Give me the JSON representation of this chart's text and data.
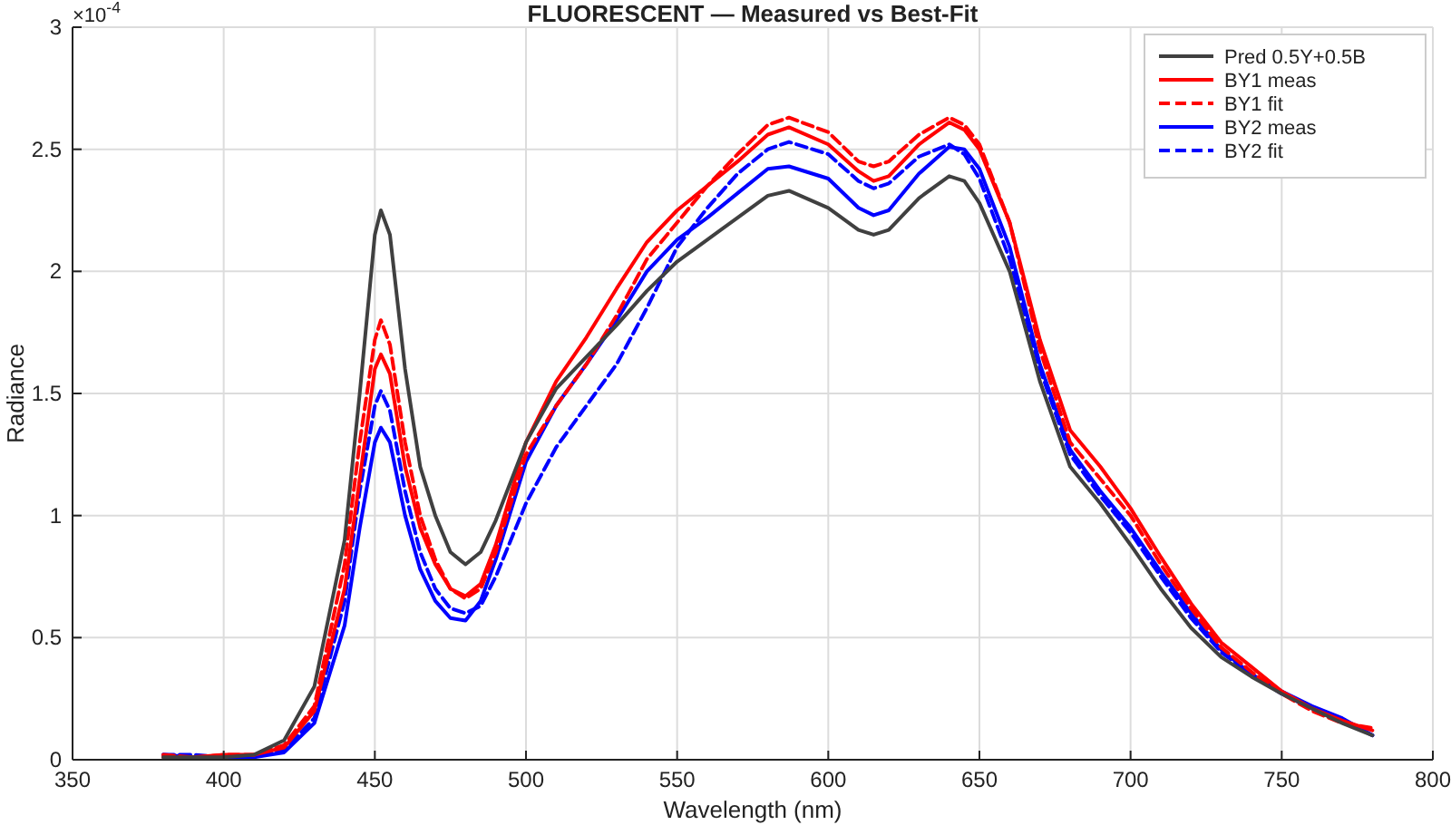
{
  "chart_data": {
    "type": "line",
    "title": "FLUORESCENT — Measured vs Best-Fit",
    "xlabel": "Wavelength (nm)",
    "ylabel": "Radiance",
    "annotations": [
      "×10$^{-4}$"
    ],
    "x": [
      380,
      390,
      400,
      410,
      420,
      430,
      440,
      445,
      450,
      452,
      455,
      460,
      465,
      470,
      475,
      480,
      485,
      490,
      500,
      510,
      520,
      530,
      540,
      550,
      560,
      570,
      580,
      587,
      600,
      610,
      615,
      620,
      630,
      640,
      645,
      650,
      660,
      670,
      680,
      690,
      700,
      710,
      720,
      730,
      740,
      750,
      760,
      770,
      780
    ],
    "series": [
      {
        "name": "Pred 0.5Y+0.5B",
        "color": "#404040",
        "line_style": "solid",
        "values": [
          0.01,
          0.01,
          0.01,
          0.02,
          0.08,
          0.3,
          0.9,
          1.5,
          2.15,
          2.25,
          2.15,
          1.6,
          1.2,
          1.0,
          0.85,
          0.8,
          0.85,
          0.98,
          1.3,
          1.52,
          1.65,
          1.78,
          1.92,
          2.04,
          2.13,
          2.22,
          2.31,
          2.33,
          2.26,
          2.17,
          2.15,
          2.17,
          2.3,
          2.39,
          2.37,
          2.28,
          2.0,
          1.55,
          1.2,
          1.05,
          0.88,
          0.7,
          0.54,
          0.42,
          0.34,
          0.27,
          0.21,
          0.15,
          0.1
        ]
      },
      {
        "name": "BY1 meas",
        "color": "#ff0000",
        "line_style": "solid",
        "values": [
          0.01,
          0.01,
          0.02,
          0.02,
          0.05,
          0.2,
          0.7,
          1.15,
          1.6,
          1.66,
          1.58,
          1.2,
          0.95,
          0.8,
          0.7,
          0.67,
          0.72,
          0.88,
          1.3,
          1.55,
          1.73,
          1.93,
          2.12,
          2.25,
          2.35,
          2.45,
          2.56,
          2.59,
          2.52,
          2.41,
          2.37,
          2.39,
          2.52,
          2.61,
          2.58,
          2.5,
          2.2,
          1.72,
          1.35,
          1.2,
          1.03,
          0.83,
          0.64,
          0.48,
          0.38,
          0.28,
          0.21,
          0.16,
          0.12
        ]
      },
      {
        "name": "BY1 fit",
        "color": "#ff0000",
        "line_style": "dashed",
        "values": [
          0.02,
          0.01,
          0.02,
          0.02,
          0.06,
          0.22,
          0.8,
          1.3,
          1.72,
          1.8,
          1.7,
          1.3,
          1.0,
          0.82,
          0.7,
          0.66,
          0.7,
          0.85,
          1.25,
          1.45,
          1.62,
          1.82,
          2.05,
          2.2,
          2.35,
          2.48,
          2.6,
          2.63,
          2.57,
          2.45,
          2.43,
          2.45,
          2.56,
          2.63,
          2.6,
          2.52,
          2.2,
          1.68,
          1.3,
          1.15,
          1.0,
          0.8,
          0.62,
          0.46,
          0.36,
          0.27,
          0.2,
          0.15,
          0.13
        ]
      },
      {
        "name": "BY2 meas",
        "color": "#0000ff",
        "line_style": "solid",
        "values": [
          0.02,
          0.01,
          0.01,
          0.01,
          0.03,
          0.15,
          0.55,
          0.95,
          1.3,
          1.36,
          1.3,
          1.0,
          0.78,
          0.65,
          0.58,
          0.57,
          0.65,
          0.82,
          1.22,
          1.45,
          1.62,
          1.8,
          2.0,
          2.13,
          2.22,
          2.32,
          2.42,
          2.43,
          2.38,
          2.26,
          2.23,
          2.25,
          2.4,
          2.51,
          2.5,
          2.42,
          2.1,
          1.62,
          1.27,
          1.1,
          0.95,
          0.77,
          0.6,
          0.45,
          0.35,
          0.28,
          0.22,
          0.17,
          0.1
        ]
      },
      {
        "name": "BY2 fit",
        "color": "#0000ff",
        "line_style": "dashed",
        "values": [
          0.02,
          0.02,
          0.01,
          0.01,
          0.04,
          0.17,
          0.65,
          1.1,
          1.45,
          1.51,
          1.43,
          1.1,
          0.85,
          0.7,
          0.62,
          0.6,
          0.63,
          0.75,
          1.05,
          1.28,
          1.45,
          1.62,
          1.85,
          2.1,
          2.26,
          2.4,
          2.5,
          2.53,
          2.48,
          2.37,
          2.34,
          2.36,
          2.47,
          2.52,
          2.48,
          2.38,
          2.05,
          1.6,
          1.25,
          1.08,
          0.93,
          0.75,
          0.58,
          0.44,
          0.35,
          0.27,
          0.21,
          0.16,
          0.1
        ]
      }
    ],
    "xlim": [
      350,
      800
    ],
    "xticks": [
      350,
      400,
      450,
      500,
      550,
      600,
      650,
      700,
      750,
      800
    ],
    "ylim": [
      0,
      3
    ],
    "yticks": [
      0,
      0.5,
      1,
      1.5,
      2,
      2.5,
      3
    ],
    "grid": true,
    "legend": "top right"
  }
}
